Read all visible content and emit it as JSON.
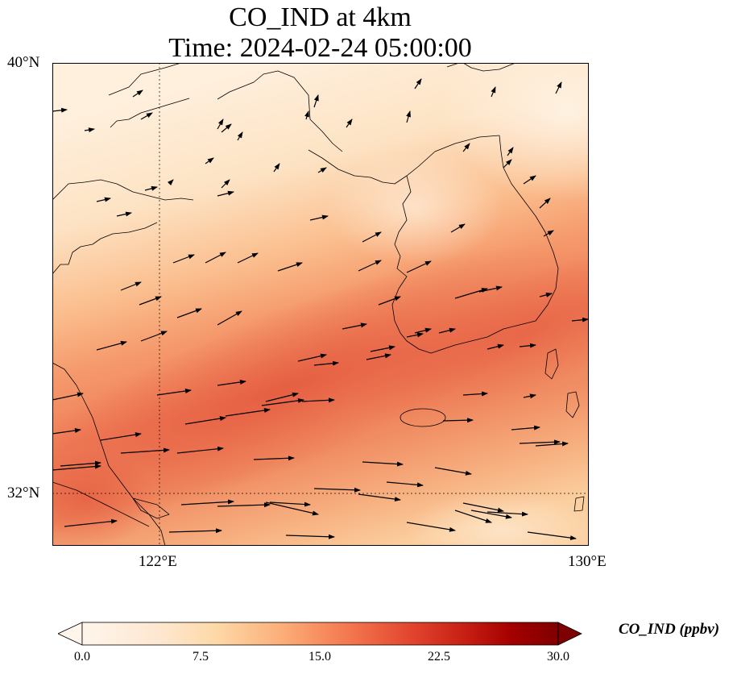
{
  "title": {
    "line1": "CO_IND at 4km",
    "line2": "Time: 2024-02-24 05:00:00"
  },
  "map": {
    "lon_range": [
      119.8,
      130.0
    ],
    "lat_range": [
      31.0,
      40.0
    ],
    "lat_ticks": [
      "40°N",
      "32°N"
    ],
    "lon_ticks": [
      "122°E",
      "130°E"
    ],
    "gridlines": {
      "lon": 122,
      "lat": 32
    }
  },
  "colorbar": {
    "label": "CO_IND (ppbv)",
    "ticks": [
      "0.0",
      "7.5",
      "15.0",
      "22.5",
      "30.0"
    ],
    "colors": [
      "#fff5eb",
      "#fdd9a8",
      "#fcae78",
      "#f4774f",
      "#d7301f",
      "#a50000",
      "#7f0000"
    ],
    "extend": "both"
  }
}
